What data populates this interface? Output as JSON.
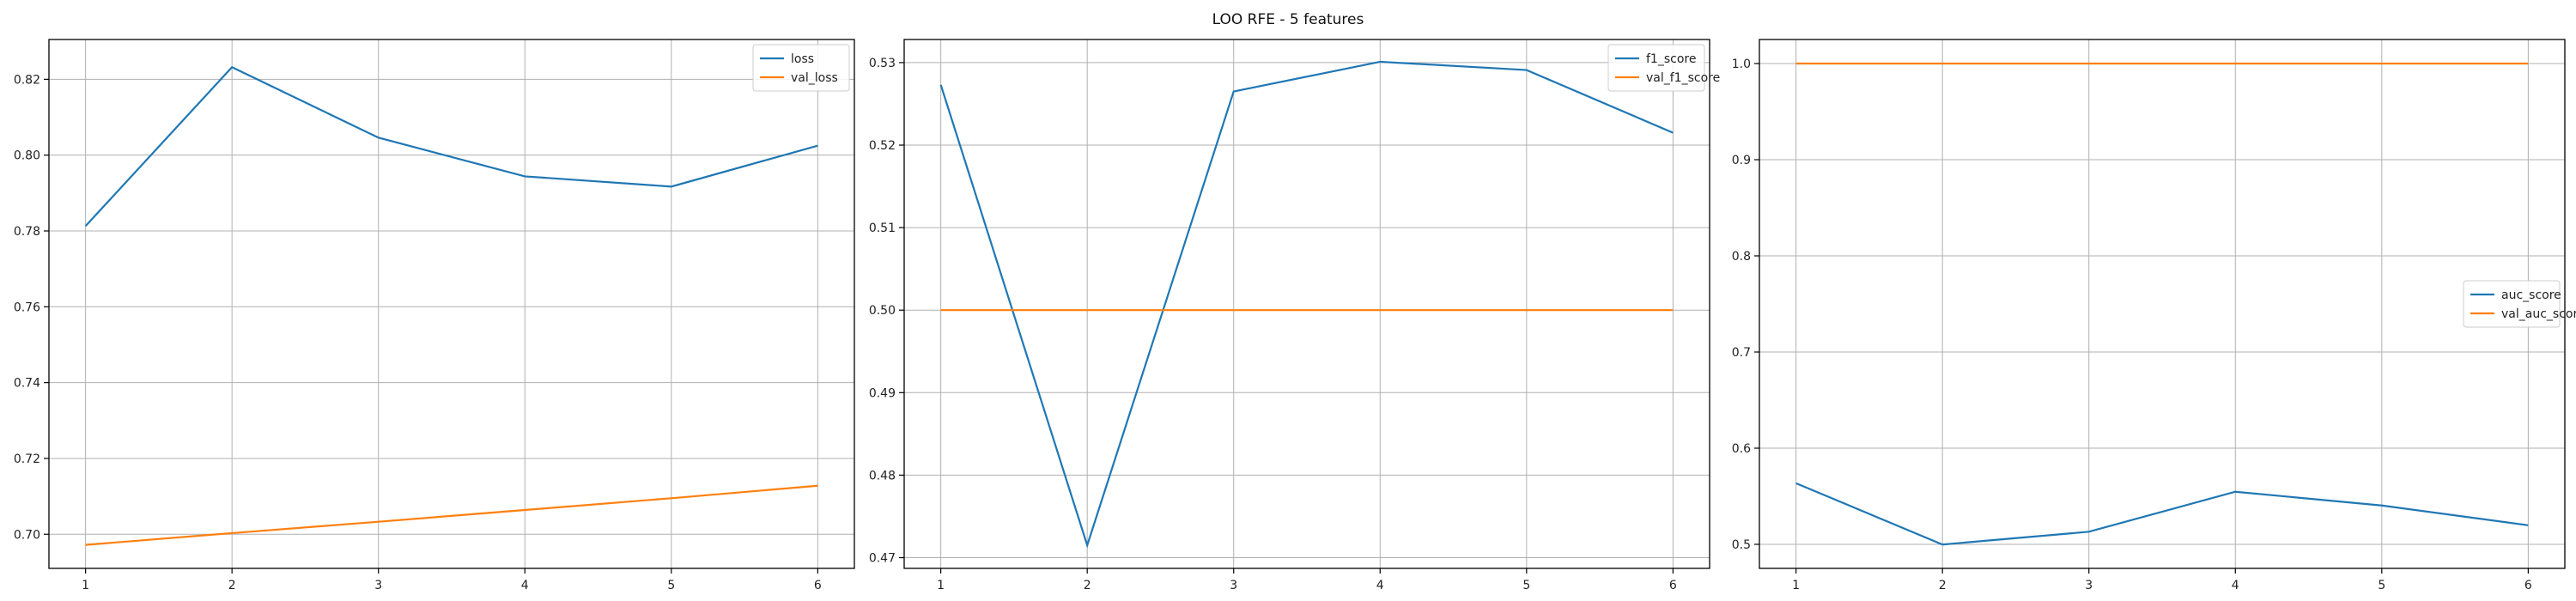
{
  "figure": {
    "title": "LOO RFE - 5 features"
  },
  "colors": {
    "series_1": "#1f77b4",
    "series_2": "#ff7f0e",
    "grid": "#b0b0b0"
  },
  "chart_data": [
    {
      "type": "line",
      "title": "",
      "xlabel": "",
      "ylabel": "",
      "x": [
        1,
        2,
        3,
        4,
        5,
        6
      ],
      "xticks": [
        1,
        2,
        3,
        4,
        5,
        6
      ],
      "xlim": [
        0.75,
        6.25
      ],
      "ylim": [
        0.691,
        0.8305
      ],
      "yticks": [
        0.7,
        0.72,
        0.74,
        0.76,
        0.78,
        0.8,
        0.82
      ],
      "ytick_labels": [
        "0.70",
        "0.72",
        "0.74",
        "0.76",
        "0.78",
        "0.80",
        "0.82"
      ],
      "grid": true,
      "legend_position": "top-right",
      "series": [
        {
          "name": "loss",
          "values": [
            0.7813,
            0.8232,
            0.8046,
            0.7944,
            0.7917,
            0.8025
          ]
        },
        {
          "name": "val_loss",
          "values": [
            0.6972,
            0.7003,
            0.7033,
            0.7064,
            0.7095,
            0.7128
          ]
        }
      ]
    },
    {
      "type": "line",
      "title": "",
      "xlabel": "",
      "ylabel": "",
      "x": [
        1,
        2,
        3,
        4,
        5,
        6
      ],
      "xticks": [
        1,
        2,
        3,
        4,
        5,
        6
      ],
      "xlim": [
        0.75,
        6.25
      ],
      "ylim": [
        0.4687,
        0.5328
      ],
      "yticks": [
        0.47,
        0.48,
        0.49,
        0.5,
        0.51,
        0.52,
        0.53
      ],
      "ytick_labels": [
        "0.47",
        "0.48",
        "0.49",
        "0.50",
        "0.51",
        "0.52",
        "0.53"
      ],
      "grid": true,
      "legend_position": "top-right",
      "series": [
        {
          "name": "f1_score",
          "values": [
            0.5273,
            0.4715,
            0.5265,
            0.5301,
            0.5291,
            0.5215
          ]
        },
        {
          "name": "val_f1_score",
          "values": [
            0.5,
            0.5,
            0.5,
            0.5,
            0.5,
            0.5
          ]
        }
      ]
    },
    {
      "type": "line",
      "title": "",
      "xlabel": "",
      "ylabel": "",
      "x": [
        1,
        2,
        3,
        4,
        5,
        6
      ],
      "xticks": [
        1,
        2,
        3,
        4,
        5,
        6
      ],
      "xlim": [
        0.75,
        6.25
      ],
      "ylim": [
        0.475,
        1.025
      ],
      "yticks": [
        0.5,
        0.6,
        0.7,
        0.8,
        0.9,
        1.0
      ],
      "ytick_labels": [
        "0.5",
        "0.6",
        "0.7",
        "0.8",
        "0.9",
        "1.0"
      ],
      "grid": true,
      "legend_position": "center-right",
      "series": [
        {
          "name": "auc_score",
          "values": [
            0.5635,
            0.4998,
            0.5131,
            0.5547,
            0.5404,
            0.5198
          ]
        },
        {
          "name": "val_auc_score",
          "values": [
            1.0,
            1.0,
            1.0,
            1.0,
            1.0,
            1.0
          ]
        }
      ]
    }
  ]
}
